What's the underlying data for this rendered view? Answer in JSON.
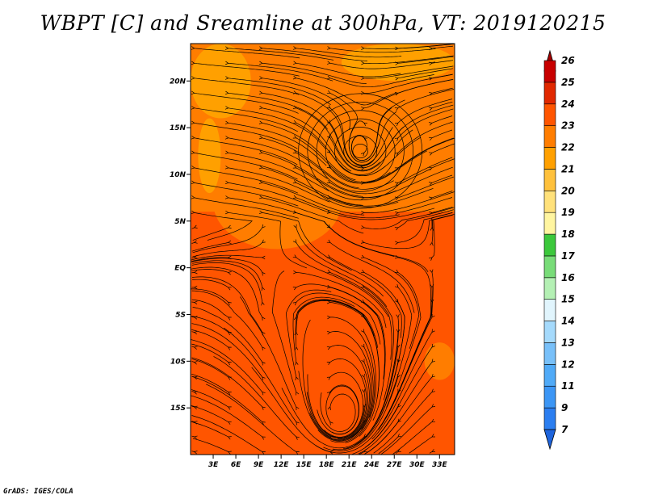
{
  "title": "WBPT [C] and Sreamline at 300hPa, VT: 2019120215",
  "footer": "GrADS: IGES/COLA",
  "chart_data": {
    "type": "heatmap",
    "variable": "WBPT [C]",
    "overlay": "streamlines",
    "lon_range": [
      0,
      35
    ],
    "lat_range": [
      -20,
      24
    ],
    "x_ticks": [
      "3E",
      "6E",
      "9E",
      "12E",
      "15E",
      "18E",
      "21E",
      "24E",
      "27E",
      "30E",
      "33E"
    ],
    "x_tick_values": [
      3,
      6,
      9,
      12,
      15,
      18,
      21,
      24,
      27,
      30,
      33
    ],
    "y_ticks": [
      "20N",
      "15N",
      "10N",
      "5N",
      "EQ",
      "5S",
      "10S",
      "15S"
    ],
    "y_tick_values": [
      20,
      15,
      10,
      5,
      0,
      -5,
      -10,
      -15
    ],
    "colorbar": {
      "labels": [
        "7",
        "9",
        "11",
        "12",
        "13",
        "14",
        "15",
        "16",
        "17",
        "18",
        "19",
        "20",
        "21",
        "22",
        "23",
        "24",
        "25",
        "26"
      ],
      "colors": [
        "#1e64dc",
        "#2b7ef0",
        "#3c96f5",
        "#50aaf7",
        "#78c0f9",
        "#a5dafc",
        "#e1f5fd",
        "#b4f0b4",
        "#78dc78",
        "#3cc83c",
        "#fff5a0",
        "#ffe17a",
        "#ffc13c",
        "#ffa000",
        "#ff7d00",
        "#ff5500",
        "#e12800",
        "#c80000",
        "#a50000"
      ]
    },
    "regions": [
      {
        "lon": [
          0,
          35
        ],
        "lat": [
          -20,
          24
        ],
        "value": 22.5
      },
      {
        "lon": [
          0,
          35
        ],
        "lat": [
          -20,
          6
        ],
        "value": 23.5
      },
      {
        "lon": [
          0,
          8
        ],
        "lat": [
          16,
          24
        ],
        "value": 21.5
      },
      {
        "lon": [
          20,
          35
        ],
        "lat": [
          20,
          24
        ],
        "value": 21.2
      },
      {
        "lon": [
          3,
          20
        ],
        "lat": [
          2,
          12
        ],
        "value": 22.6
      },
      {
        "lon": [
          1,
          4
        ],
        "lat": [
          8,
          16
        ],
        "value": 21.6
      },
      {
        "lon": [
          12,
          25
        ],
        "lat": [
          -20,
          -2
        ],
        "value": 23.6
      },
      {
        "lon": [
          31,
          35
        ],
        "lat": [
          -12,
          -8
        ],
        "value": 22.4
      }
    ],
    "vortex_center": {
      "lon": 22.5,
      "lat": 12.5
    }
  }
}
